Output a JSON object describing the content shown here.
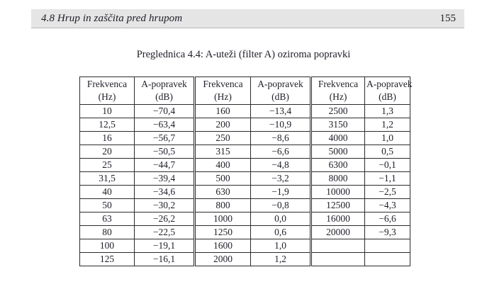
{
  "header": {
    "section_title": "4.8 Hrup in zaščita pred hrupom",
    "page_number": "155"
  },
  "caption": "Preglednica 4.4: A-uteži (filter A) oziroma popravki",
  "table": {
    "columns": [
      {
        "label": "Frekvenca",
        "unit": "(Hz)"
      },
      {
        "label": "A-popravek",
        "unit": "(dB)"
      },
      {
        "label": "Frekvenca",
        "unit": "(Hz)"
      },
      {
        "label": "A-popravek",
        "unit": "(dB)"
      },
      {
        "label": "Frekvenca",
        "unit": "(Hz)"
      },
      {
        "label": "A-popravek",
        "unit": "(dB)"
      }
    ],
    "rows": [
      [
        "10",
        "−70,4",
        "160",
        "−13,4",
        "2500",
        "1,3"
      ],
      [
        "12,5",
        "−63,4",
        "200",
        "−10,9",
        "3150",
        "1,2"
      ],
      [
        "16",
        "−56,7",
        "250",
        "−8,6",
        "4000",
        "1,0"
      ],
      [
        "20",
        "−50,5",
        "315",
        "−6,6",
        "5000",
        "0,5"
      ],
      [
        "25",
        "−44,7",
        "400",
        "−4,8",
        "6300",
        "−0,1"
      ],
      [
        "31,5",
        "−39,4",
        "500",
        "−3,2",
        "8000",
        "−1,1"
      ],
      [
        "40",
        "−34,6",
        "630",
        "−1,9",
        "10000",
        "−2,5"
      ],
      [
        "50",
        "−30,2",
        "800",
        "−0,8",
        "12500",
        "−4,3"
      ],
      [
        "63",
        "−26,2",
        "1000",
        "0,0",
        "16000",
        "−6,6"
      ],
      [
        "80",
        "−22,5",
        "1250",
        "0,6",
        "20000",
        "−9,3"
      ],
      [
        "100",
        "−19,1",
        "1600",
        "1,0",
        "",
        ""
      ],
      [
        "125",
        "−16,1",
        "2000",
        "1,2",
        "",
        ""
      ]
    ]
  },
  "colors": {
    "header_band": "#e5e5e5",
    "text": "#1e1e28",
    "table_border": "#2b2b2b"
  }
}
